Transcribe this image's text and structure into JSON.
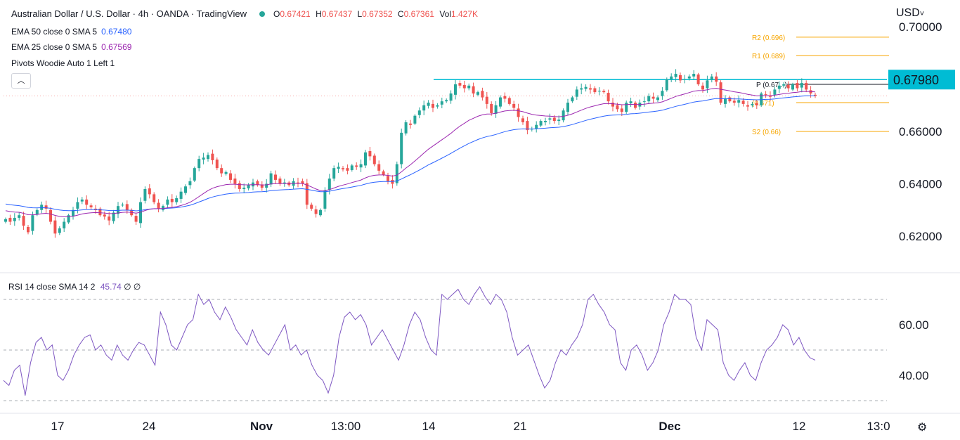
{
  "header": {
    "title": "Australian Dollar / U.S. Dollar · 4h · OANDA · TradingView",
    "open_label": "O",
    "open": "0.67421",
    "high_label": "H",
    "high": "0.67437",
    "low_label": "L",
    "low": "0.67352",
    "close_label": "C",
    "close": "0.67361",
    "vol_label": "Vol",
    "vol": "1.427K"
  },
  "indicators": {
    "ema50": {
      "label": "EMA 50 close 0 SMA 5",
      "value": "0.67480",
      "color": "#2962ff"
    },
    "ema25": {
      "label": "EMA 25 close 0 SMA 5",
      "value": "0.67569",
      "color": "#9c27b0"
    },
    "pivots": {
      "label": "Pivots Woodie Auto 1 Left 1"
    },
    "rsi": {
      "label": "RSI 14 close SMA 14 2",
      "value": "45.74",
      "extra1": "∅",
      "extra2": "∅",
      "color": "#7e57c2"
    }
  },
  "currency": "USD",
  "icons": {
    "collapse": "chevron-up-icon",
    "settings": "gear-icon",
    "dropdown": "chevron-down-icon"
  },
  "colors": {
    "up": "#26a69a",
    "down": "#ef5350",
    "resistance": "#00bcd4",
    "pivot": "#f7a600"
  },
  "chart_data": [
    {
      "type": "candlestick",
      "title": "Australian Dollar / U.S. Dollar · 4h · OANDA · TradingView",
      "x_tick_labels": [
        "17",
        "24",
        "Nov",
        "13:00",
        "14",
        "21",
        "Dec",
        "12",
        "13:0"
      ],
      "y_tick_labels": [
        "0.70000",
        "0.66000",
        "0.64000",
        "0.62000"
      ],
      "ylim": [
        0.605,
        0.703
      ],
      "current_price": "0.67980",
      "resistance_level": 0.6798,
      "pivot_levels": [
        {
          "name": "R2",
          "label": "R2 (0.696)",
          "value": 0.696
        },
        {
          "name": "R1",
          "label": "R1 (0.689)",
          "value": 0.689
        },
        {
          "name": "P",
          "label": "P (0.67...)",
          "value": 0.678
        },
        {
          "name": "S1",
          "label": "(0.671)",
          "value": 0.671
        },
        {
          "name": "S2",
          "label": "S2 (0.66)",
          "value": 0.66
        }
      ],
      "close_series_approx": [
        0.6265,
        0.6255,
        0.627,
        0.628,
        0.624,
        0.6215,
        0.628,
        0.63,
        0.632,
        0.6305,
        0.6255,
        0.621,
        0.623,
        0.6255,
        0.628,
        0.63,
        0.633,
        0.634,
        0.632,
        0.631,
        0.63,
        0.628,
        0.6275,
        0.626,
        0.629,
        0.6315,
        0.632,
        0.63,
        0.628,
        0.6255,
        0.633,
        0.638,
        0.636,
        0.633,
        0.6305,
        0.6315,
        0.634,
        0.633,
        0.6345,
        0.637,
        0.639,
        0.641,
        0.646,
        0.6495,
        0.65,
        0.651,
        0.649,
        0.646,
        0.644,
        0.6445,
        0.6415,
        0.64,
        0.638,
        0.6385,
        0.6395,
        0.6405,
        0.6395,
        0.6385,
        0.64,
        0.644,
        0.6415,
        0.64,
        0.6405,
        0.6395,
        0.641,
        0.6405,
        0.64,
        0.632,
        0.6305,
        0.6285,
        0.63,
        0.6375,
        0.642,
        0.646,
        0.6465,
        0.6455,
        0.645,
        0.647,
        0.6465,
        0.6475,
        0.652,
        0.6505,
        0.6475,
        0.645,
        0.6435,
        0.641,
        0.64,
        0.6475,
        0.6595,
        0.6635,
        0.6625,
        0.666,
        0.668,
        0.67,
        0.671,
        0.669,
        0.67,
        0.6715,
        0.672,
        0.6745,
        0.678,
        0.6775,
        0.6765,
        0.6775,
        0.6745,
        0.675,
        0.673,
        0.6705,
        0.667,
        0.67,
        0.673,
        0.6725,
        0.6705,
        0.669,
        0.6655,
        0.6635,
        0.6605,
        0.661,
        0.6625,
        0.664,
        0.664,
        0.665,
        0.664,
        0.6645,
        0.668,
        0.671,
        0.673,
        0.676,
        0.6765,
        0.677,
        0.676,
        0.675,
        0.6755,
        0.675,
        0.6715,
        0.6695,
        0.6685,
        0.6675,
        0.671,
        0.6715,
        0.669,
        0.671,
        0.6715,
        0.6735,
        0.6725,
        0.673,
        0.6755,
        0.68,
        0.681,
        0.682,
        0.6795,
        0.68,
        0.681,
        0.682,
        0.678,
        0.676,
        0.6795,
        0.681,
        0.679,
        0.671,
        0.6725,
        0.6715,
        0.671,
        0.672,
        0.6705,
        0.6695,
        0.6705,
        0.67,
        0.6745,
        0.674,
        0.6735,
        0.676,
        0.6775,
        0.678,
        0.6765,
        0.678,
        0.6765,
        0.6785,
        0.676,
        0.6745,
        0.6736
      ]
    },
    {
      "type": "line",
      "title": "RSI 14 close SMA 14 2",
      "y_tick_labels": [
        "60.00",
        "40.00"
      ],
      "ylim": [
        28,
        77
      ],
      "bands": [
        70,
        50,
        30
      ],
      "values_approx": [
        38,
        36,
        42,
        44,
        32,
        45,
        53,
        55,
        50,
        52,
        40,
        38,
        42,
        48,
        52,
        55,
        56,
        50,
        52,
        48,
        46,
        52,
        48,
        46,
        50,
        53,
        52,
        48,
        44,
        65,
        60,
        52,
        50,
        55,
        60,
        62,
        72,
        68,
        70,
        65,
        62,
        67,
        63,
        58,
        55,
        52,
        58,
        53,
        50,
        48,
        52,
        56,
        60,
        50,
        52,
        48,
        50,
        44,
        40,
        38,
        33,
        40,
        55,
        63,
        65,
        62,
        64,
        60,
        52,
        55,
        58,
        54,
        50,
        46,
        52,
        60,
        65,
        62,
        55,
        50,
        48,
        72,
        70,
        72,
        74,
        70,
        68,
        72,
        75,
        71,
        68,
        72,
        70,
        65,
        55,
        48,
        50,
        52,
        46,
        40,
        35,
        38,
        45,
        50,
        48,
        52,
        55,
        60,
        70,
        72,
        68,
        65,
        60,
        58,
        45,
        42,
        50,
        52,
        48,
        42,
        45,
        50,
        60,
        65,
        72,
        70,
        70,
        68,
        55,
        50,
        62,
        60,
        58,
        45,
        40,
        38,
        42,
        45,
        40,
        38,
        45,
        50,
        52,
        55,
        60,
        58,
        52,
        55,
        50,
        47,
        46
      ]
    }
  ]
}
